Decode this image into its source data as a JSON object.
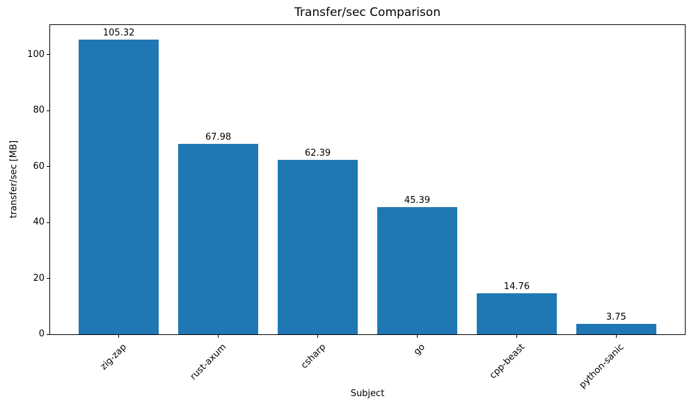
{
  "chart_data": {
    "type": "bar",
    "title": "Transfer/sec Comparison",
    "xlabel": "Subject",
    "ylabel": "transfer/sec [MB]",
    "categories": [
      "zig-zap",
      "rust-axum",
      "csharp",
      "go",
      "cpp-beast",
      "python-sanic"
    ],
    "values": [
      105.32,
      67.98,
      62.39,
      45.39,
      14.76,
      3.75
    ],
    "value_labels": [
      "105.32",
      "67.98",
      "62.39",
      "45.39",
      "14.76",
      "3.75"
    ],
    "yticks": [
      0,
      20,
      40,
      60,
      80,
      100
    ],
    "ylim": [
      0,
      110.59
    ],
    "xtick_rotation_deg": 45,
    "bar_width_fraction": 0.8,
    "bar_color": "#1f77b4",
    "axis_color": "#000000",
    "background_color": "#ffffff",
    "grid": false,
    "legend": false
  }
}
